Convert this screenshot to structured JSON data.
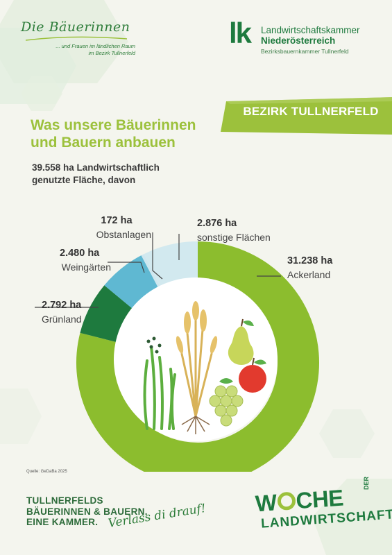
{
  "header": {
    "logo_left_script": "Die Bäuerinnen",
    "logo_left_tagline_1": "... und Frauen im ländlichen Raum",
    "logo_left_tagline_2": "im Bezirk Tullnerfeld",
    "lk_mark": "lk",
    "lk_line1": "Landwirtschaftskammer",
    "lk_line2": "Niederösterreich",
    "lk_line3": "Bezirksbauernkammer Tullnerfeld"
  },
  "badge": "BEZIRK TULLNERFELD",
  "title": {
    "line1": "Was unsere Bäuerinnen",
    "line2": "und Bauern anbauen"
  },
  "subtitle": {
    "line1": "39.558 ha Landwirtschaftlich",
    "line2": "genutzte Fläche, davon"
  },
  "colors": {
    "ackerland": "#8cbd2e",
    "gruenland": "#1e7a3e",
    "weingaerten": "#5fb8d2",
    "obstanlagen": "#cfe7ef",
    "sonstige": "#d2e9ef",
    "accent": "#9cc13c"
  },
  "chart_data": {
    "type": "pie",
    "donut": true,
    "unit": "ha",
    "total": 39558,
    "slices": [
      {
        "key": "ackerland",
        "label": "Ackerland",
        "value": 31238,
        "value_text": "31.238 ha"
      },
      {
        "key": "gruenland",
        "label": "Grünland",
        "value": 2792,
        "value_text": "2.792 ha"
      },
      {
        "key": "weingaerten",
        "label": "Weingärten",
        "value": 2480,
        "value_text": "2.480 ha"
      },
      {
        "key": "obstanlagen",
        "label": "Obstanlagen",
        "value": 172,
        "value_text": "172 ha"
      },
      {
        "key": "sonstige",
        "label": "sonstige Flächen",
        "value": 2876,
        "value_text": "2.876 ha"
      }
    ]
  },
  "source": "Quelle: GeDaBa 2025",
  "footer": {
    "line1": "TULLNERFELDS",
    "line2": "BÄUERINNEN & BAUERN.",
    "line3": "EINE KAMMER.",
    "verlass": "Verlass di drauf!",
    "woche_w": "W",
    "woche_rest": "CHE",
    "der": "DER",
    "landwirtschaft": "LANDWIRTSCHAFT"
  }
}
